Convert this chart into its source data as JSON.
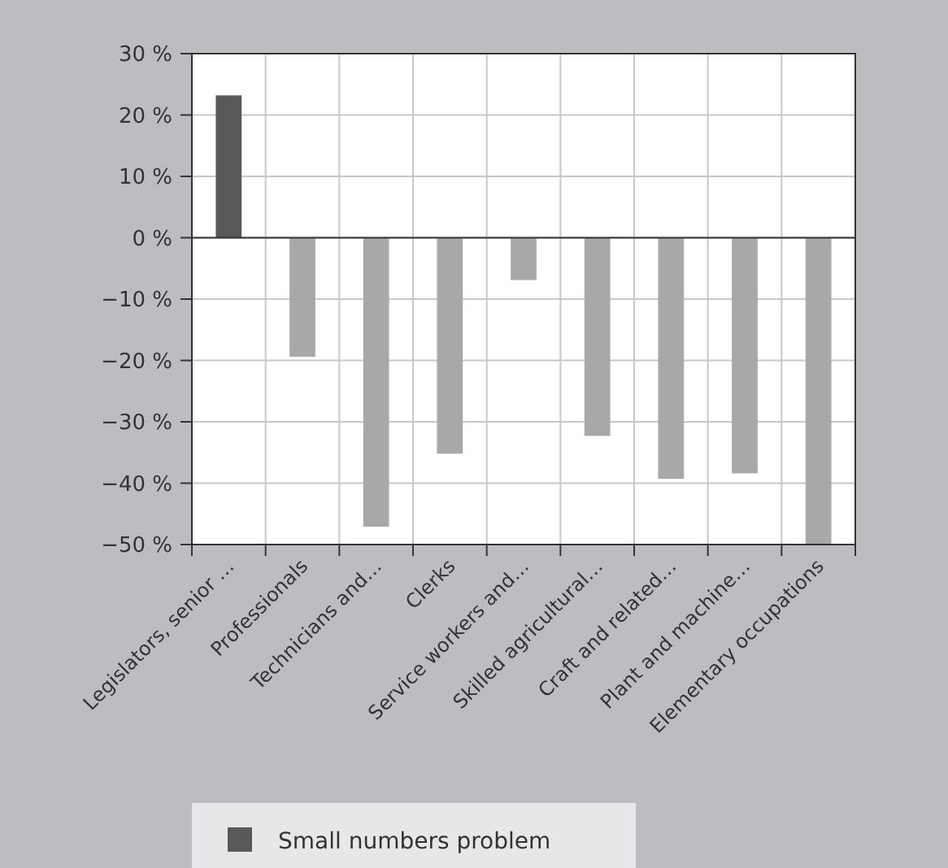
{
  "chart_data": {
    "type": "bar",
    "stacked": true,
    "categories": [
      "Legislators, senior …",
      "Professionals",
      "Technicians and…",
      "Clerks",
      "Service workers and…",
      "Skilled agricultural…",
      "Craft and related…",
      "Plant and machine…",
      "Elementary occupations"
    ],
    "series": [
      {
        "name": "Small numbers problem",
        "color": "#58595b",
        "values": [
          23.2,
          null,
          null,
          null,
          null,
          null,
          null,
          null,
          null
        ]
      },
      {
        "color": "#a7a8aa",
        "values": [
          null,
          -19.4,
          -47.1,
          -35.2,
          -6.9,
          -32.3,
          -39.3,
          -38.4,
          -50
        ]
      }
    ],
    "ylim": [
      -50,
      30
    ],
    "yticks": [
      {
        "value": 30,
        "label": "30 %"
      },
      {
        "value": 20,
        "label": "20 %"
      },
      {
        "value": 10,
        "label": "10 %"
      },
      {
        "value": 0,
        "label": "0 %"
      },
      {
        "value": -10,
        "label": "−10 %"
      },
      {
        "value": -20,
        "label": "−20 %"
      },
      {
        "value": -30,
        "label": "−30 %"
      },
      {
        "value": -40,
        "label": "−40 %"
      },
      {
        "value": -50,
        "label": "−50 %"
      }
    ],
    "grid": true,
    "legend": "bottom"
  }
}
